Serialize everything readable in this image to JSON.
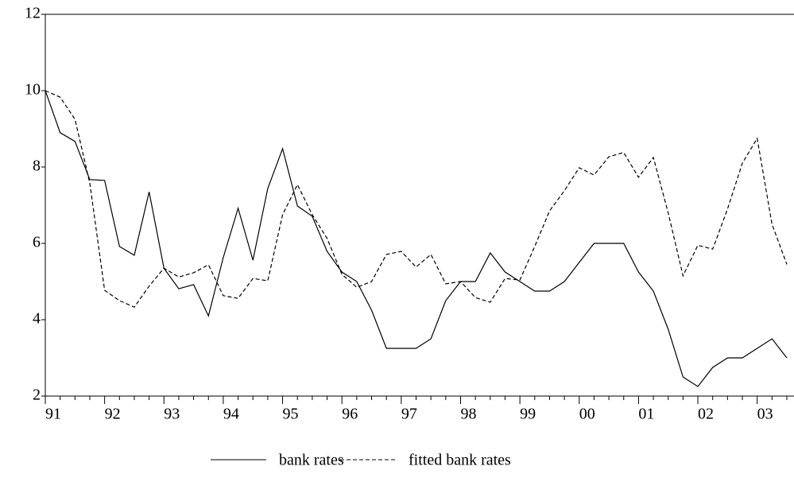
{
  "chart_data": {
    "type": "line",
    "categories": [
      "91",
      null,
      null,
      null,
      "92",
      null,
      null,
      null,
      "93",
      null,
      null,
      null,
      "94",
      null,
      null,
      null,
      "95",
      null,
      null,
      null,
      "96",
      null,
      null,
      null,
      "97",
      null,
      null,
      null,
      "98",
      null,
      null,
      null,
      "99",
      null,
      null,
      null,
      "00",
      null,
      null,
      null,
      "01",
      null,
      null,
      null,
      "02",
      null,
      null,
      null,
      "03",
      null,
      null
    ],
    "series": [
      {
        "name": "bank rates",
        "color": "#000000",
        "dash": "solid",
        "values": [
          10.0,
          8.9,
          8.67,
          7.67,
          7.65,
          5.92,
          5.69,
          7.35,
          5.35,
          4.81,
          4.92,
          4.1,
          5.63,
          6.92,
          5.56,
          7.44,
          8.48,
          6.98,
          6.71,
          5.79,
          5.25,
          5.0,
          4.25,
          3.25,
          3.25,
          3.25,
          3.5,
          4.5,
          5.0,
          5.0,
          5.75,
          5.25,
          5.0,
          4.75,
          4.75,
          5.0,
          5.5,
          6.0,
          6.0,
          6.0,
          5.25,
          4.75,
          3.75,
          2.5,
          2.25,
          2.75,
          3.0,
          3.0,
          3.25,
          3.5,
          3.0
        ]
      },
      {
        "name": "fitted bank rates",
        "color": "#000000",
        "dash": "dashed",
        "values": [
          10.0,
          9.83,
          9.25,
          7.58,
          4.77,
          4.5,
          4.33,
          4.88,
          5.35,
          5.12,
          5.23,
          5.44,
          4.63,
          4.56,
          5.08,
          5.02,
          6.75,
          7.54,
          6.75,
          6.13,
          5.19,
          4.85,
          5.0,
          5.71,
          5.79,
          5.38,
          5.71,
          4.94,
          5.0,
          4.58,
          4.46,
          5.08,
          5.04,
          5.92,
          6.85,
          7.38,
          7.98,
          7.79,
          8.27,
          8.38,
          7.73,
          8.25,
          6.8,
          5.15,
          5.95,
          5.85,
          6.9,
          8.1,
          8.75,
          6.5,
          5.45
        ]
      }
    ],
    "ylim": [
      2,
      12
    ],
    "yticks": [
      2,
      4,
      6,
      8,
      10,
      12
    ],
    "grid": false,
    "legend": "bottom"
  }
}
